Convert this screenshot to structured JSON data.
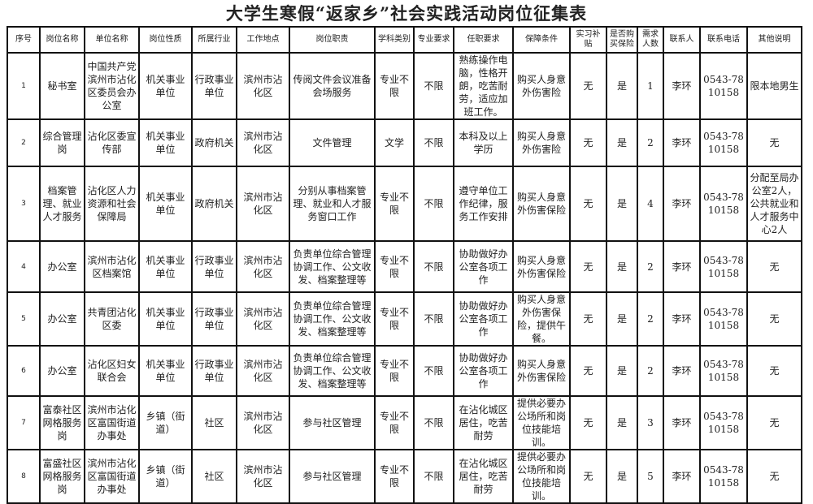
{
  "title": "大学生寒假“返家乡”社会实践活动岗位征集表",
  "headers": [
    "序号",
    "岗位名称",
    "单位名称",
    "岗位性质",
    "所属行业",
    "工作地点",
    "岗位职责",
    "学科类别",
    "专业要求",
    "任职要求",
    "保障条件",
    "实习补贴",
    "是否购买保险",
    "需求人数",
    "联系人",
    "联系电话",
    "其他说明"
  ],
  "rows": [
    [
      "1",
      "秘书室",
      "中国共产党滨州市沾化区委员会办公室",
      "机关事业单位",
      "行政事业单位",
      "滨州市沾化区",
      "传阅文件会议准备会场服务",
      "专业不限",
      "不限",
      "熟练操作电脑，性格开朗，吃苦耐劳，适应加班工作。",
      "购买人身意外伤害险",
      "无",
      "是",
      "1",
      "李环",
      "0543-7810158",
      "限本地男生"
    ],
    [
      "2",
      "综合管理岗",
      "沾化区委宣传部",
      "机关事业单位",
      "政府机关",
      "滨州市沾化区",
      "文件管理",
      "文学",
      "不限",
      "本科及以上学历",
      "购买人身意外伤害险",
      "无",
      "是",
      "2",
      "李环",
      "0543-7810158",
      "无"
    ],
    [
      "3",
      "档案管理、就业人才服务",
      "沾化区人力资源和社会保障局",
      "机关事业单位",
      "政府机关",
      "滨州市沾化区",
      "分别从事档案管理、就业和人才服务窗口工作",
      "专业不限",
      "不限",
      "遵守单位工作纪律，服务工作安排",
      "购买人身意外伤害保险",
      "无",
      "是",
      "4",
      "李环",
      "0543-7810158",
      "分配至局办公室2人，公共就业和人才服务中心2人"
    ],
    [
      "4",
      "办公室",
      "滨州市沾化区档案馆",
      "机关事业单位",
      "行政事业单位",
      "滨州市沾化区",
      "负责单位综合管理协调工作、公文收发、档案整理等",
      "专业不限",
      "不限",
      "协助做好办公室各项工作",
      "购买人身意外伤害保险",
      "无",
      "是",
      "2",
      "李环",
      "0543-7810158",
      "无"
    ],
    [
      "5",
      "办公室",
      "共青团沾化区委",
      "机关事业单位",
      "行政事业单位",
      "滨州市沾化区",
      "负责单位综合管理协调工作、公文收发、档案整理等",
      "专业不限",
      "不限",
      "协助做好办公室各项工作",
      "购买人身意外伤害保险，提供午餐。",
      "无",
      "是",
      "2",
      "李环",
      "0543-7810158",
      "无"
    ],
    [
      "6",
      "办公室",
      "沾化区妇女联合会",
      "机关事业单位",
      "行政事业单位",
      "滨州市沾化区",
      "负责单位综合管理协调工作、公文收发、档案整理等",
      "专业不限",
      "不限",
      "协助做好办公室各项工作",
      "购买人身意外伤害保险",
      "无",
      "是",
      "2",
      "李环",
      "0543-7810158",
      "无"
    ],
    [
      "7",
      "富泰社区网格服务岗",
      "滨州市沾化区富国街道办事处",
      "乡镇（街道）",
      "社区",
      "滨州市沾化区",
      "参与社区管理",
      "专业不限",
      "不限",
      "在沾化城区居住，吃苦耐劳",
      "提供必要办公场所和岗位技能培训。",
      "无",
      "是",
      "3",
      "李环",
      "0543-7810158",
      "无"
    ],
    [
      "8",
      "富盛社区网格服务岗",
      "滨州市沾化区富国街道办事处",
      "乡镇（街道）",
      "社区",
      "滨州市沾化区",
      "参与社区管理",
      "专业不限",
      "不限",
      "在沾化城区居住，吃苦耐劳",
      "提供必要办公场所和岗位技能培训。",
      "无",
      "是",
      "5",
      "李环",
      "0543-7810158",
      "无"
    ]
  ]
}
